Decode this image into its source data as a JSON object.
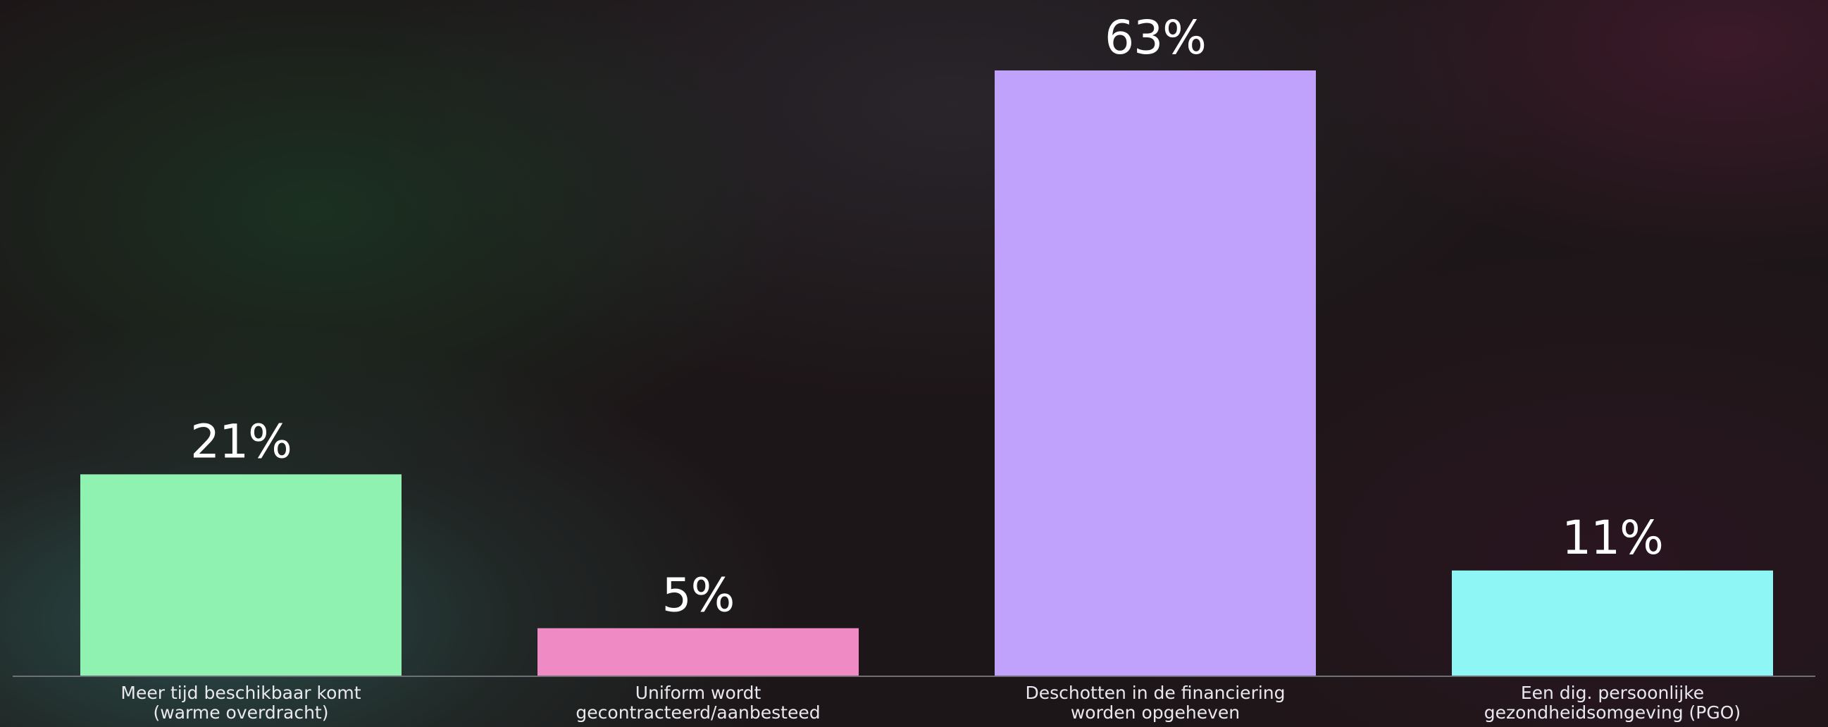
{
  "chart_data": {
    "type": "bar",
    "title": "",
    "xlabel": "",
    "ylabel": "",
    "ylim": [
      0,
      63
    ],
    "grid": false,
    "legend": "none",
    "categories": [
      [
        "Meer tijd beschikbaar komt",
        "(warme overdracht)"
      ],
      [
        "Uniform wordt",
        "gecontracteerd/aanbesteed"
      ],
      [
        "Deschotten in de financiering",
        "worden opgeheven"
      ],
      [
        "Een dig. persoonlijke",
        "gezondheidsomgeving (PGO)"
      ]
    ],
    "values": [
      21,
      5,
      63,
      11
    ],
    "value_labels": [
      "21%",
      "5%",
      "63%",
      "11%"
    ],
    "colors": [
      "#8ff2b0",
      "#f08ac4",
      "#c0a2fd",
      "#8ef6f4"
    ],
    "axis_color": "#6e6e78"
  }
}
